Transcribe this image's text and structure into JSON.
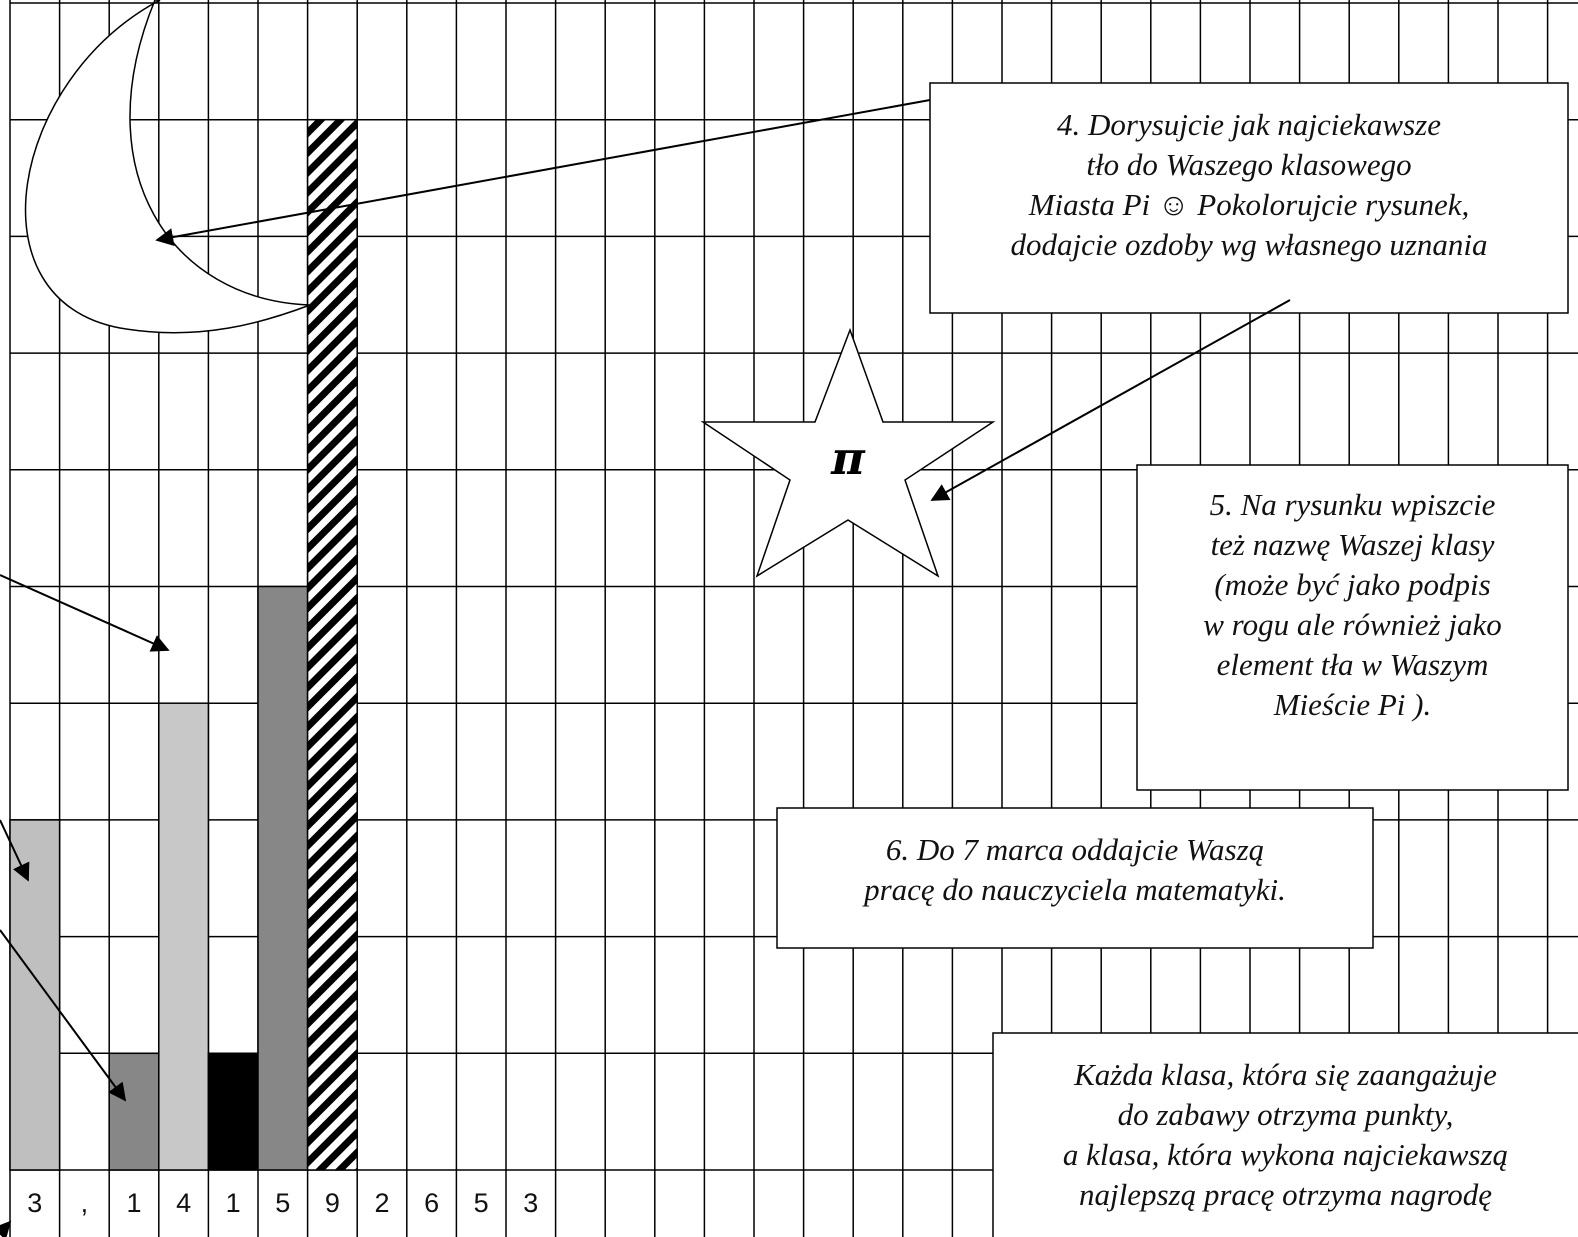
{
  "notes": [
    {
      "lines": [
        "4. Dorysujcie jak najciekawsze",
        "tło do Waszego klasowego",
        "Miasta Pi ☺ Pokolorujcie rysunek,",
        "dodajcie ozdoby wg własnego uznania"
      ]
    },
    {
      "lines": [
        "5. Na rysunku wpiszcie",
        "też nazwę Waszej klasy",
        "(może być jako podpis",
        "w rogu ale również jako",
        "element tła w Waszym",
        "Mieście Pi )."
      ]
    },
    {
      "lines": [
        "6. Do 7 marca oddajcie Waszą",
        "pracę do nauczyciela matematyki."
      ]
    },
    {
      "lines": [
        "Każda klasa, która się zaangażuje",
        "do zabawy otrzyma punkty,",
        "a klasa, która wykona najciekawszą",
        "najlepszą pracę otrzyma nagrodę"
      ]
    }
  ],
  "star_label": "π",
  "digits": [
    "3",
    ",",
    "1",
    "4",
    "1",
    "5",
    "9",
    "2",
    "6",
    "5",
    "3"
  ]
}
